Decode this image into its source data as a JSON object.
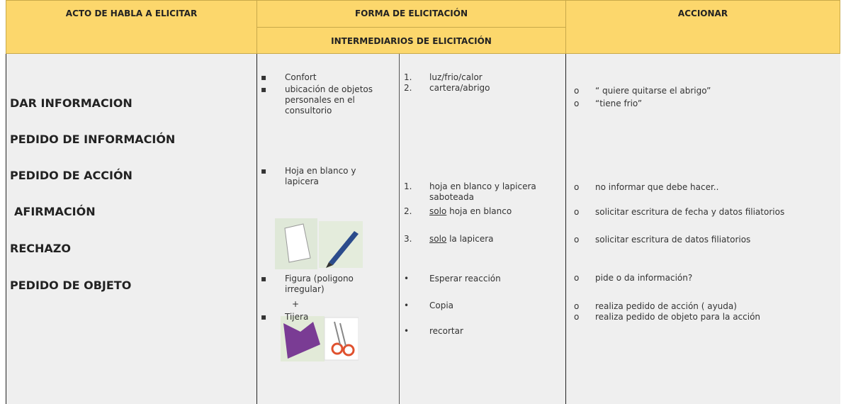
{
  "header": {
    "col1": "ACTO DE HABLA A ELICITAR",
    "col2": "FORMA DE ELICITACIÓN",
    "col2_sub": "INTERMEDIARIOS DE ELICITACIÓN",
    "col3": "ACCIONAR"
  },
  "acts": [
    "DAR INFORMACION",
    "PEDIDO DE INFORMACIÓN",
    "PEDIDO DE ACCIÓN",
    "AFIRMACIÓN",
    "RECHAZO",
    "PEDIDO DE OBJETO"
  ],
  "forms": [
    {
      "marker": "▪",
      "text": "Confort"
    },
    {
      "marker": "▪",
      "text": "ubicación de objetos personales en el consultorio"
    },
    {
      "marker": "▪",
      "text": "Hoja en blanco y lapicera"
    },
    {
      "marker": "▪",
      "text": "Figura (poligono irregular)"
    },
    {
      "marker": "",
      "text": "+"
    },
    {
      "marker": "▪",
      "text": "Tijera"
    }
  ],
  "intermediaries": [
    {
      "marker": "1.",
      "text": "luz/frio/calor"
    },
    {
      "marker": "2.",
      "text": "cartera/abrigo"
    },
    {
      "marker": "1.",
      "text": "hoja en blanco y lapicera saboteada"
    },
    {
      "marker": "2.",
      "emph": "solo",
      "text": " hoja en blanco"
    },
    {
      "marker": "3.",
      "emph": "solo",
      "text": " la lapicera"
    },
    {
      "marker": "•",
      "text": "Esperar reacción"
    },
    {
      "marker": "•",
      "text": "Copia"
    },
    {
      "marker": "•",
      "text": "recortar"
    }
  ],
  "actions": [
    {
      "marker": "o",
      "text": "“ quiere quitarse el abrigo”"
    },
    {
      "marker": "o",
      "text": "“tiene frio”"
    },
    {
      "marker": "o",
      "text": "no informar que debe hacer.."
    },
    {
      "marker": "o",
      "text": "solicitar escritura de fecha y datos filiatorios"
    },
    {
      "marker": "o",
      "text": "solicitar escritura de datos filiatorios"
    },
    {
      "marker": "o",
      "text": "pide o da información?"
    },
    {
      "marker": "o",
      "text": "realiza pedido de acción ( ayuda)"
    },
    {
      "marker": "o",
      "text": "realiza pedido de objeto para la acción"
    }
  ]
}
